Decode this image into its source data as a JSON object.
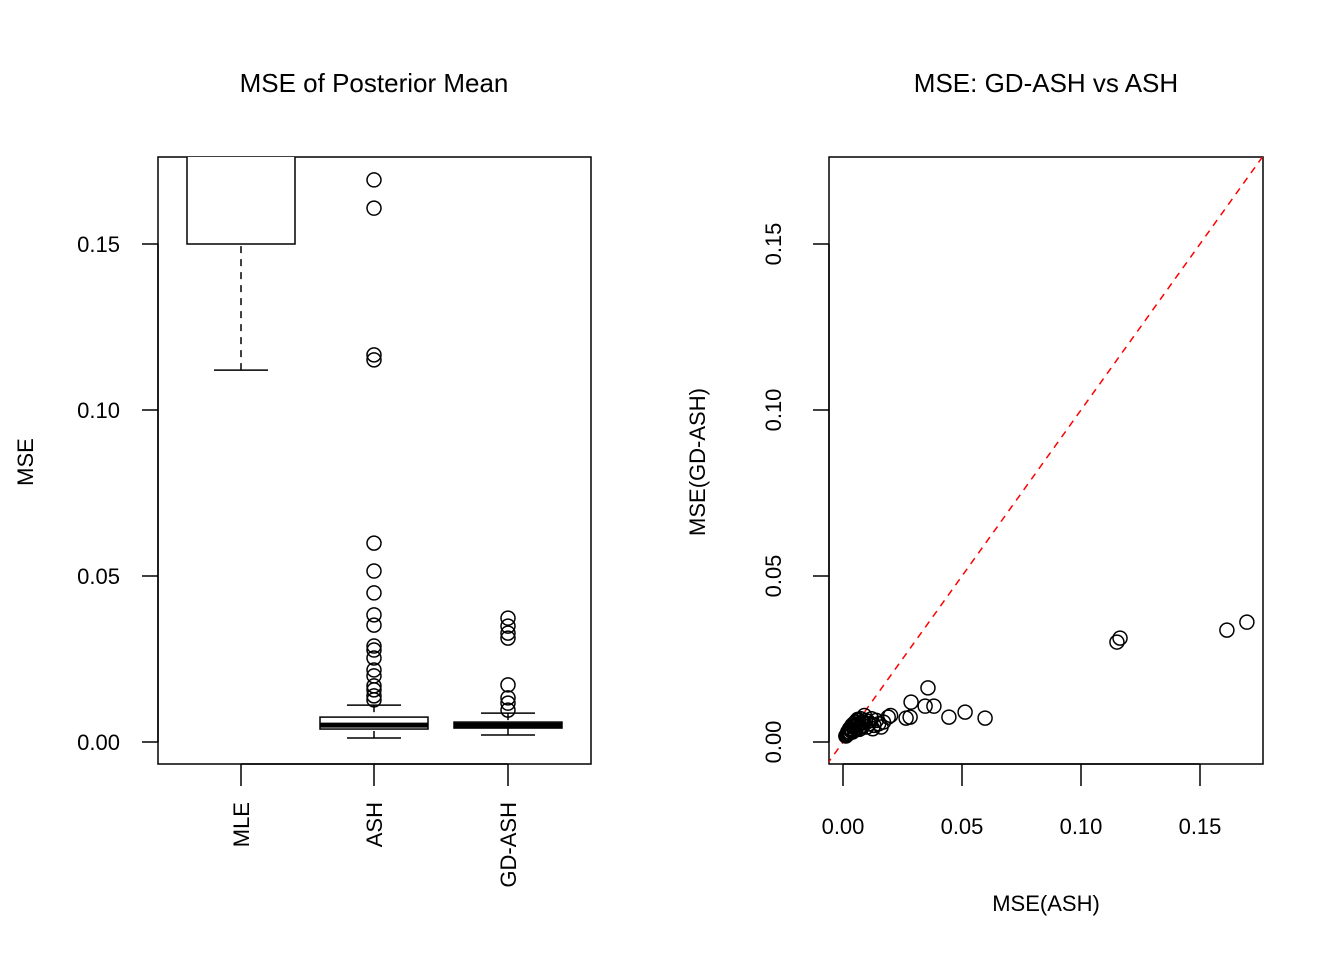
{
  "chart_data": [
    {
      "type": "boxplot",
      "title": "MSE of Posterior Mean",
      "xlabel": "",
      "ylabel": "MSE",
      "ylim": [
        0,
        0.175
      ],
      "yticks": [
        "0.00",
        "0.05",
        "0.10",
        "0.15"
      ],
      "categories": [
        "MLE",
        "ASH",
        "GD-ASH"
      ],
      "boxes": [
        {
          "name": "MLE",
          "whisker_low": 0.112,
          "q1": 0.15,
          "median": null,
          "q3": null,
          "whisker_high": null,
          "outliers": []
        },
        {
          "name": "ASH",
          "whisker_low": 0.0012,
          "q1": 0.0039,
          "median": 0.0051,
          "q3": 0.0075,
          "whisker_high": 0.0111,
          "outliers": [
            0.1693,
            0.1608,
            0.1166,
            0.1151,
            0.0599,
            0.0515,
            0.0449,
            0.0383,
            0.0352,
            0.0289,
            0.0277,
            0.0253,
            0.0217,
            0.0199,
            0.0169,
            0.0157,
            0.0139,
            0.0127
          ]
        },
        {
          "name": "GD-ASH",
          "whisker_low": 0.0021,
          "q1": 0.0042,
          "median": 0.0051,
          "q3": 0.006,
          "whisker_high": 0.0087,
          "outliers": [
            0.0373,
            0.0349,
            0.0328,
            0.0313,
            0.0172,
            0.0133,
            0.0117,
            0.0096
          ]
        }
      ]
    },
    {
      "type": "scatter",
      "title": "MSE: GD-ASH vs ASH",
      "xlabel": "MSE(ASH)",
      "ylabel": "MSE(GD-ASH)",
      "xlim": [
        0,
        0.17
      ],
      "ylim": [
        0,
        0.175
      ],
      "xticks": [
        "0.00",
        "0.05",
        "0.10",
        "0.15"
      ],
      "yticks": [
        "0.00",
        "0.05",
        "0.10",
        "0.15"
      ],
      "reference_line": {
        "slope": 1,
        "intercept": 0,
        "color": "#ff0000",
        "style": "dashed"
      },
      "points": [
        [
          0.1697,
          0.0361
        ],
        [
          0.1613,
          0.0337
        ],
        [
          0.1164,
          0.0313
        ],
        [
          0.1151,
          0.0301
        ],
        [
          0.0597,
          0.0072
        ],
        [
          0.0513,
          0.009
        ],
        [
          0.0445,
          0.0075
        ],
        [
          0.0382,
          0.0108
        ],
        [
          0.0357,
          0.0163
        ],
        [
          0.0345,
          0.0108
        ],
        [
          0.0286,
          0.012
        ],
        [
          0.0282,
          0.0075
        ],
        [
          0.0265,
          0.0072
        ],
        [
          0.02,
          0.008
        ],
        [
          0.019,
          0.0075
        ],
        [
          0.017,
          0.006
        ],
        [
          0.016,
          0.0045
        ],
        [
          0.014,
          0.0065
        ],
        [
          0.013,
          0.005
        ],
        [
          0.012,
          0.007
        ],
        [
          0.011,
          0.0055
        ],
        [
          0.01,
          0.0045
        ],
        [
          0.0095,
          0.0065
        ],
        [
          0.009,
          0.008
        ],
        [
          0.0085,
          0.005
        ],
        [
          0.008,
          0.006
        ],
        [
          0.0075,
          0.007
        ],
        [
          0.007,
          0.0045
        ],
        [
          0.0065,
          0.0055
        ],
        [
          0.006,
          0.005
        ],
        [
          0.0058,
          0.0065
        ],
        [
          0.0055,
          0.004
        ],
        [
          0.005,
          0.005
        ],
        [
          0.0048,
          0.0035
        ],
        [
          0.0045,
          0.0055
        ],
        [
          0.0042,
          0.0045
        ],
        [
          0.004,
          0.003
        ],
        [
          0.0038,
          0.005
        ],
        [
          0.0035,
          0.004
        ],
        [
          0.0032,
          0.0035
        ],
        [
          0.003,
          0.0028
        ],
        [
          0.0028,
          0.004
        ],
        [
          0.0025,
          0.003
        ],
        [
          0.0022,
          0.0025
        ],
        [
          0.002,
          0.003
        ],
        [
          0.0018,
          0.0022
        ],
        [
          0.0015,
          0.002
        ],
        [
          0.0012,
          0.0018
        ],
        [
          0.0068,
          0.0038
        ],
        [
          0.0078,
          0.0042
        ],
        [
          0.0088,
          0.0058
        ],
        [
          0.0105,
          0.0062
        ],
        [
          0.0125,
          0.004
        ],
        [
          0.015,
          0.0055
        ],
        [
          0.0052,
          0.006
        ],
        [
          0.0062,
          0.0068
        ]
      ]
    }
  ]
}
